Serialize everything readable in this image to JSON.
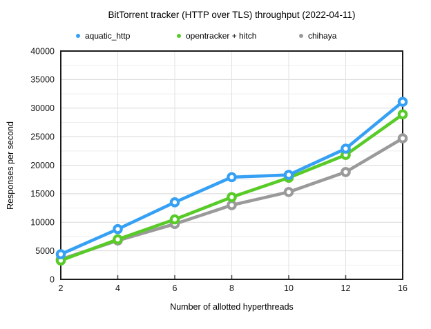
{
  "title": "BitTorrent tracker (HTTP over TLS) throughput (2022-04-11)",
  "chart_data": {
    "type": "line",
    "title": "BitTorrent tracker (HTTP over TLS) throughput (2022-04-11)",
    "xlabel": "Number of allotted hyperthreads",
    "ylabel": "Responses per second",
    "categories": [
      2,
      4,
      6,
      8,
      10,
      12,
      16
    ],
    "x_axis": {
      "type": "category",
      "equal_spacing": true
    },
    "y_axis": {
      "min": 0,
      "max": 40000,
      "label_step": 5000,
      "minor_grid_step": 2500
    },
    "grid": true,
    "legend_position": "top",
    "marker_style": "open-circle",
    "series": [
      {
        "name": "aquatic_http",
        "color": "#36A0F4",
        "values": [
          4400,
          8800,
          13500,
          17900,
          18300,
          22900,
          31100
        ]
      },
      {
        "name": "opentracker + hitch",
        "color": "#58CB28",
        "values": [
          3300,
          7000,
          10500,
          14400,
          17800,
          21800,
          28900
        ]
      },
      {
        "name": "chihaya",
        "color": "#9A9A9A",
        "values": [
          3500,
          6800,
          9700,
          13000,
          15300,
          18800,
          24700
        ]
      }
    ]
  },
  "colors": {
    "background": "#ffffff",
    "plot_border": "#1a1a1a",
    "major_grid": "#d7d7d7",
    "minor_grid": "#eeeeee",
    "vertical_grid": "#e2e2e2",
    "marker_fill": "#ffffff"
  }
}
